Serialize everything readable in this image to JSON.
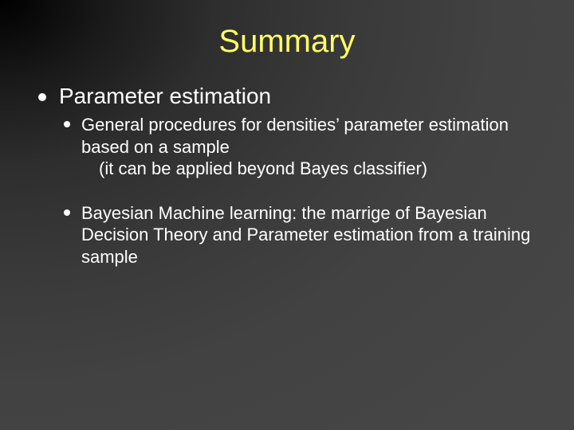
{
  "slide": {
    "title": "Summary",
    "title_color": "#ffff66",
    "title_fontsize": 40,
    "background_gradient": {
      "type": "radial",
      "from": "#000000",
      "to": "#464646"
    },
    "text_color": "#ffffff",
    "bullets": [
      {
        "text": "Parameter estimation",
        "fontsize": 28,
        "sub": [
          {
            "line1": "General procedures for densities’ parameter estimation",
            "line2": "based on a sample",
            "line3": "(it can be applied beyond Bayes classifier)",
            "fontsize": 22
          },
          {
            "line1": "Bayesian Machine learning: the marrige of Bayesian",
            "line2": "Decision Theory and Parameter estimation from a",
            "line3": "training sample",
            "fontsize": 22
          }
        ]
      }
    ]
  }
}
